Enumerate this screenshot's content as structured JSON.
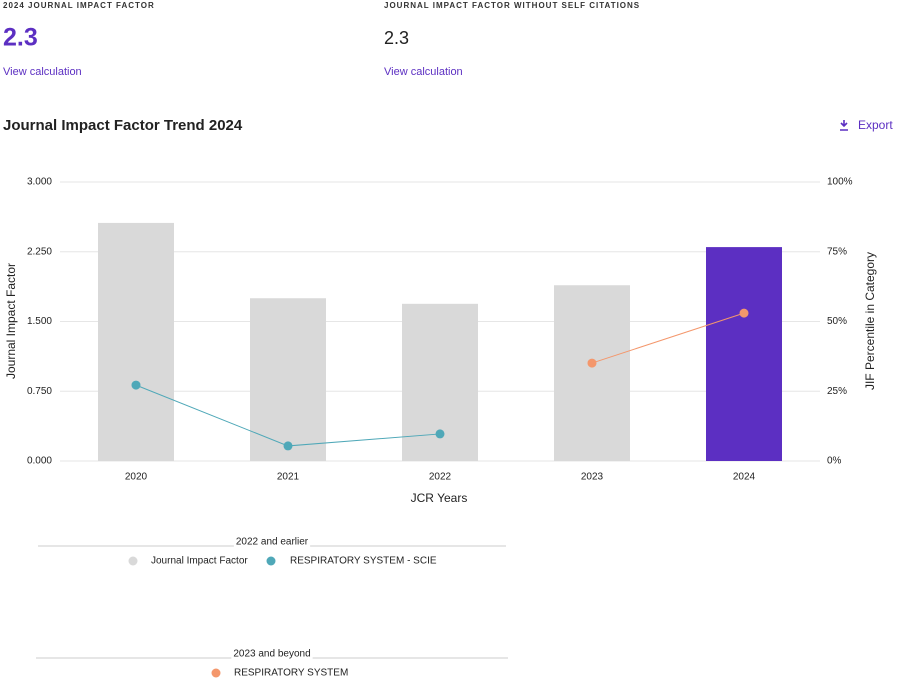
{
  "header": {
    "metrics": [
      {
        "label": "2024 JOURNAL IMPACT FACTOR",
        "value": 2.3,
        "link": "View calculation"
      },
      {
        "label": "JOURNAL IMPACT FACTOR WITHOUT SELF CITATIONS",
        "value": 2.3,
        "link": "View calculation"
      }
    ],
    "title": "Journal Impact Factor Trend 2024",
    "export": "Export"
  },
  "chart_data": {
    "type": "bar-line",
    "x_label": "JCR Years",
    "y_label": "Journal Impact Factor",
    "y2_label": "JIF Percentile in Category",
    "categories": [
      "2020",
      "2021",
      "2022",
      "2023",
      "2024"
    ],
    "series": [
      {
        "name": "Journal Impact Factor",
        "type": "bar",
        "colors": [
          "#d9d9d9",
          "#d9d9d9",
          "#d9d9d9",
          "#d9d9d9",
          "#5c2fc2"
        ],
        "values": [
          2.56,
          1.75,
          1.69,
          1.89,
          2.3
        ]
      },
      {
        "name": "RESPIRATORY SYSTEM - SCIE",
        "type": "line",
        "axis": "y2",
        "color": "#4fa8b8",
        "values": [
          27.2,
          5.4,
          9.7,
          null,
          null
        ]
      },
      {
        "name": "RESPIRATORY SYSTEM",
        "type": "line",
        "axis": "y2",
        "color": "#f4976c",
        "values": [
          null,
          null,
          null,
          35.1,
          53.0
        ]
      }
    ],
    "ylim": [
      0,
      3
    ],
    "yticks": [
      {
        "value": 0,
        "label": "0.000"
      },
      {
        "value": 0.75,
        "label": "0.750"
      },
      {
        "value": 1.5,
        "label": "1.500"
      },
      {
        "value": 2.25,
        "label": "2.250"
      },
      {
        "value": 3,
        "label": "3.000"
      }
    ],
    "y2lim": [
      0,
      100
    ],
    "y2ticks": [
      {
        "value": 0,
        "label": "0%"
      },
      {
        "value": 25,
        "label": "25%"
      },
      {
        "value": 50,
        "label": "50%"
      },
      {
        "value": 75,
        "label": "75%"
      },
      {
        "value": 100,
        "label": "100%"
      }
    ],
    "grid": true,
    "legend_groups": [
      "2022 and earlier",
      "2023 and beyond"
    ]
  }
}
